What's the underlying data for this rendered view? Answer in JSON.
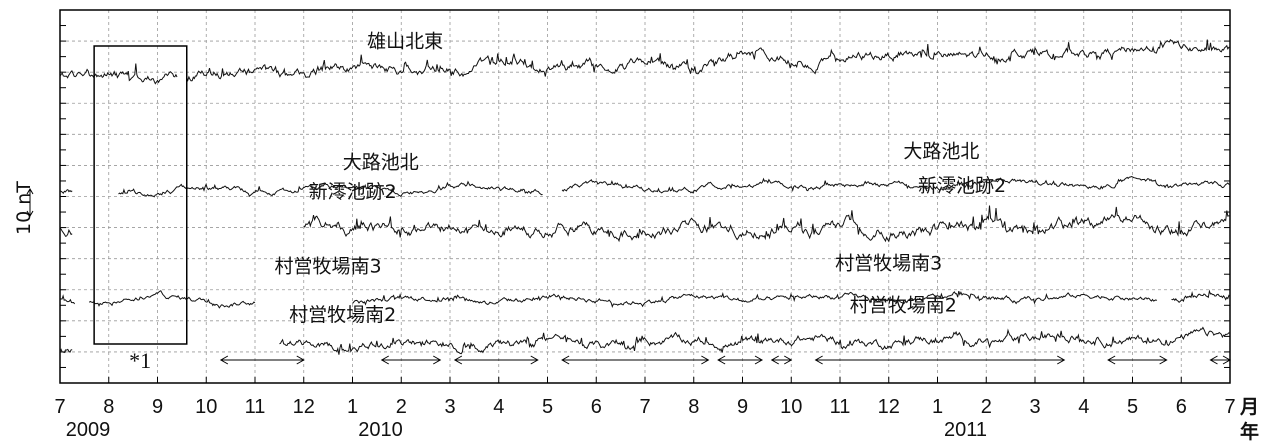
{
  "chart_data": {
    "type": "line",
    "title": "",
    "xlabel": "月",
    "xlabel2": "年",
    "ylabel": "10 nT",
    "grid": true,
    "x_ticks": [
      "7",
      "8",
      "9",
      "10",
      "11",
      "12",
      "1",
      "2",
      "3",
      "4",
      "5",
      "6",
      "7",
      "8",
      "9",
      "10",
      "11",
      "12",
      "1",
      "2",
      "3",
      "4",
      "5",
      "6",
      "7"
    ],
    "x_years": [
      {
        "label": "2009",
        "month_index": 0
      },
      {
        "label": "2010",
        "month_index": 6
      },
      {
        "label": "2011",
        "month_index": 18
      }
    ],
    "box_note": "*1",
    "box_range": [
      0.7,
      2.6
    ],
    "series": [
      {
        "name": "雄山北東",
        "base": 9.8,
        "drift": 0.0,
        "trend": 1.0,
        "roughness": 0.18,
        "spike": 0.25,
        "segments": [
          [
            0,
            2.4
          ],
          [
            2.6,
            24
          ]
        ],
        "labels": [
          {
            "text": "雄山北東",
            "at": 6.3,
            "dy": 1.0
          }
        ]
      },
      {
        "name": "大路池北",
        "base": 6.15,
        "trend": 0.3,
        "roughness": 0.1,
        "spike": 0.1,
        "segments": [
          [
            0,
            0.25
          ],
          [
            1.2,
            9.9
          ],
          [
            10.3,
            24
          ]
        ],
        "labels": [
          {
            "text": "大路池北",
            "at": 5.8,
            "dy": 0.75
          },
          {
            "text": "大路池北",
            "at": 17.3,
            "dy": 1.1
          }
        ]
      },
      {
        "name": "新澪池跡2",
        "base": 4.95,
        "trend": 0.1,
        "roughness": 0.22,
        "spike": 0.3,
        "segments": [
          [
            0,
            0.25
          ],
          [
            5.0,
            24
          ]
        ],
        "labels": [
          {
            "text": "新澪池跡2",
            "at": 5.1,
            "dy": 1.0
          },
          {
            "text": "新澪池跡2",
            "at": 17.6,
            "dy": 1.2
          }
        ]
      },
      {
        "name": "村営牧場南3",
        "base": 2.65,
        "trend": 0.1,
        "roughness": 0.1,
        "spike": 0.12,
        "segments": [
          [
            0,
            0.3
          ],
          [
            0.6,
            4.0
          ],
          [
            6.0,
            22.5
          ],
          [
            22.8,
            24
          ]
        ],
        "labels": [
          {
            "text": "村営牧場南3",
            "at": 4.4,
            "dy": 0.9
          },
          {
            "text": "村営牧場南3",
            "at": 15.9,
            "dy": 1.0
          }
        ]
      },
      {
        "name": "村営牧場南2",
        "base": 1.15,
        "trend": 0.3,
        "roughness": 0.16,
        "spike": 0.2,
        "segments": [
          [
            0,
            0.25
          ],
          [
            4.5,
            24
          ]
        ],
        "labels": [
          {
            "text": "村営牧場南2",
            "at": 4.7,
            "dy": 0.85
          },
          {
            "text": "村営牧場南2",
            "at": 16.2,
            "dy": 1.15
          }
        ]
      }
    ],
    "arrows": [
      [
        3.3,
        5.0
      ],
      [
        6.6,
        7.8
      ],
      [
        8.1,
        9.8
      ],
      [
        10.3,
        13.3
      ],
      [
        13.5,
        14.4
      ],
      [
        14.6,
        15.0
      ],
      [
        15.5,
        20.6
      ],
      [
        21.5,
        22.7
      ],
      [
        23.6,
        24.0
      ]
    ]
  }
}
